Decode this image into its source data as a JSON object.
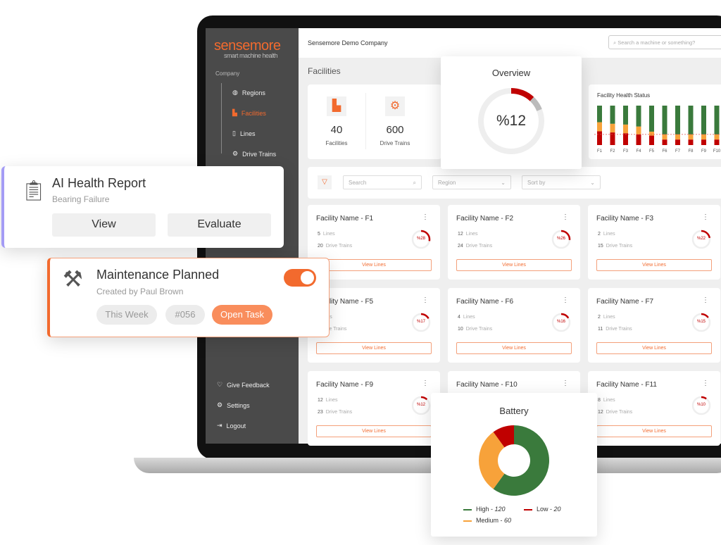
{
  "brand": {
    "name": "sensemore",
    "tagline": "smart machine health",
    "accent": "#f26a2e"
  },
  "sidebar": {
    "section": "Company",
    "items": [
      {
        "label": "Regions",
        "icon": "globe-icon"
      },
      {
        "label": "Facilities",
        "icon": "factory-icon",
        "active": true
      },
      {
        "label": "Lines",
        "icon": "lines-icon"
      },
      {
        "label": "Drive Trains",
        "icon": "drivetrain-icon"
      }
    ],
    "bottom": [
      {
        "label": "Give Feedback",
        "icon": "feedback-icon"
      },
      {
        "label": "Settings",
        "icon": "gear-icon"
      },
      {
        "label": "Logout",
        "icon": "logout-icon"
      }
    ]
  },
  "header": {
    "company": "Sensemore Demo Company",
    "search_placeholder": "Search a machine or something?"
  },
  "page_title": "Facilities",
  "stats": [
    {
      "value": "40",
      "label": "Facilities"
    },
    {
      "value": "600",
      "label": "Drive Trains"
    }
  ],
  "overview": {
    "title": "Overview",
    "value": "%12",
    "percent": 12
  },
  "health_chart": {
    "title": "Facility Health Status",
    "chart_data": {
      "type": "bar",
      "stacked": true,
      "categories": [
        "F1",
        "F2",
        "F3",
        "F4",
        "F5",
        "F6",
        "F7",
        "F8",
        "F9",
        "F10"
      ],
      "series": [
        {
          "color": "#c00000",
          "values": [
            35,
            32,
            30,
            27,
            24,
            14,
            14,
            14,
            14,
            14
          ]
        },
        {
          "color": "#f7a23a",
          "values": [
            23,
            22,
            22,
            20,
            10,
            13,
            13,
            13,
            13,
            13
          ]
        },
        {
          "color": "#3a7a3c",
          "values": [
            42,
            46,
            48,
            53,
            66,
            73,
            73,
            73,
            73,
            73
          ]
        }
      ]
    }
  },
  "filters": {
    "search_placeholder": "Search",
    "region_placeholder": "Region",
    "sort_placeholder": "Sort by"
  },
  "facilities": [
    {
      "name": "Facility Name - F1",
      "lines": "5",
      "drive_trains": "20",
      "health": "%28",
      "pct": 28
    },
    {
      "name": "Facility Name - F2",
      "lines": "12",
      "drive_trains": "24",
      "health": "%26",
      "pct": 26
    },
    {
      "name": "Facility Name - F3",
      "lines": "2",
      "drive_trains": "15",
      "health": "%22",
      "pct": 22
    },
    {
      "name": "Facility Name - F5",
      "lines": "",
      "drive_trains": "",
      "health": "%17",
      "pct": 17
    },
    {
      "name": "Facility Name - F6",
      "lines": "4",
      "drive_trains": "10",
      "health": "%16",
      "pct": 16
    },
    {
      "name": "Facility Name - F7",
      "lines": "2",
      "drive_trains": "11",
      "health": "%15",
      "pct": 15
    },
    {
      "name": "Facility Name - F9",
      "lines": "12",
      "drive_trains": "23",
      "health": "%12",
      "pct": 12
    },
    {
      "name": "Facility Name - F10",
      "lines": "",
      "drive_trains": "",
      "health": "",
      "pct": 0
    },
    {
      "name": "Facility Name - F11",
      "lines": "8",
      "drive_trains": "12",
      "health": "%10",
      "pct": 10
    }
  ],
  "labels": {
    "lines": "Lines",
    "drive_trains": "Drive Trains",
    "view_lines": "View Lines"
  },
  "battery": {
    "title": "Battery",
    "chart_data": {
      "type": "pie",
      "donut": true,
      "slices": [
        {
          "name": "High",
          "value": 120,
          "color": "#3a7a3c"
        },
        {
          "name": "Medium",
          "value": 60,
          "color": "#f7a23a"
        },
        {
          "name": "Low",
          "value": 20,
          "color": "#c00000"
        }
      ]
    },
    "legend": {
      "high": "High - ",
      "high_v": "120",
      "low": "Low - ",
      "low_v": "20",
      "medium": "Medium - ",
      "medium_v": "60"
    }
  },
  "ai_card": {
    "title": "AI Health Report",
    "subtitle": "Bearing Failure",
    "view": "View",
    "evaluate": "Evaluate"
  },
  "maint_card": {
    "title": "Maintenance Planned",
    "subtitle": "Created by Paul Brown",
    "tag1": "This Week",
    "tag2": "#056",
    "open": "Open Task",
    "toggle_on": true
  }
}
